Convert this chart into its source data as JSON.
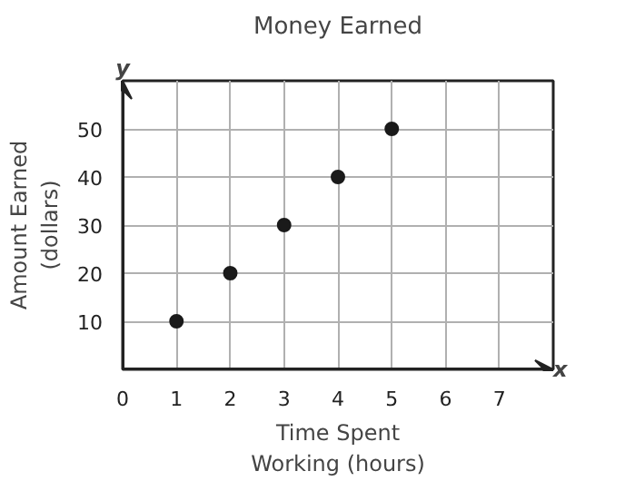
{
  "chart_data": {
    "type": "scatter",
    "title": "Money Earned",
    "xlabel": "Time Spent\nWorking (hours)",
    "ylabel": "Amount Earned\n(dollars)",
    "x": [
      1,
      2,
      3,
      4,
      5
    ],
    "values": [
      10,
      20,
      30,
      40,
      50
    ],
    "color": "#1a1a1a",
    "marker": "circle",
    "xlim": [
      0,
      8
    ],
    "ylim": [
      0,
      60
    ],
    "xticks": [
      0,
      1,
      2,
      3,
      4,
      5,
      6,
      7
    ],
    "yticks": [
      10,
      20,
      30,
      40,
      50
    ],
    "grid": true,
    "annotations": [
      "x",
      "y"
    ]
  }
}
